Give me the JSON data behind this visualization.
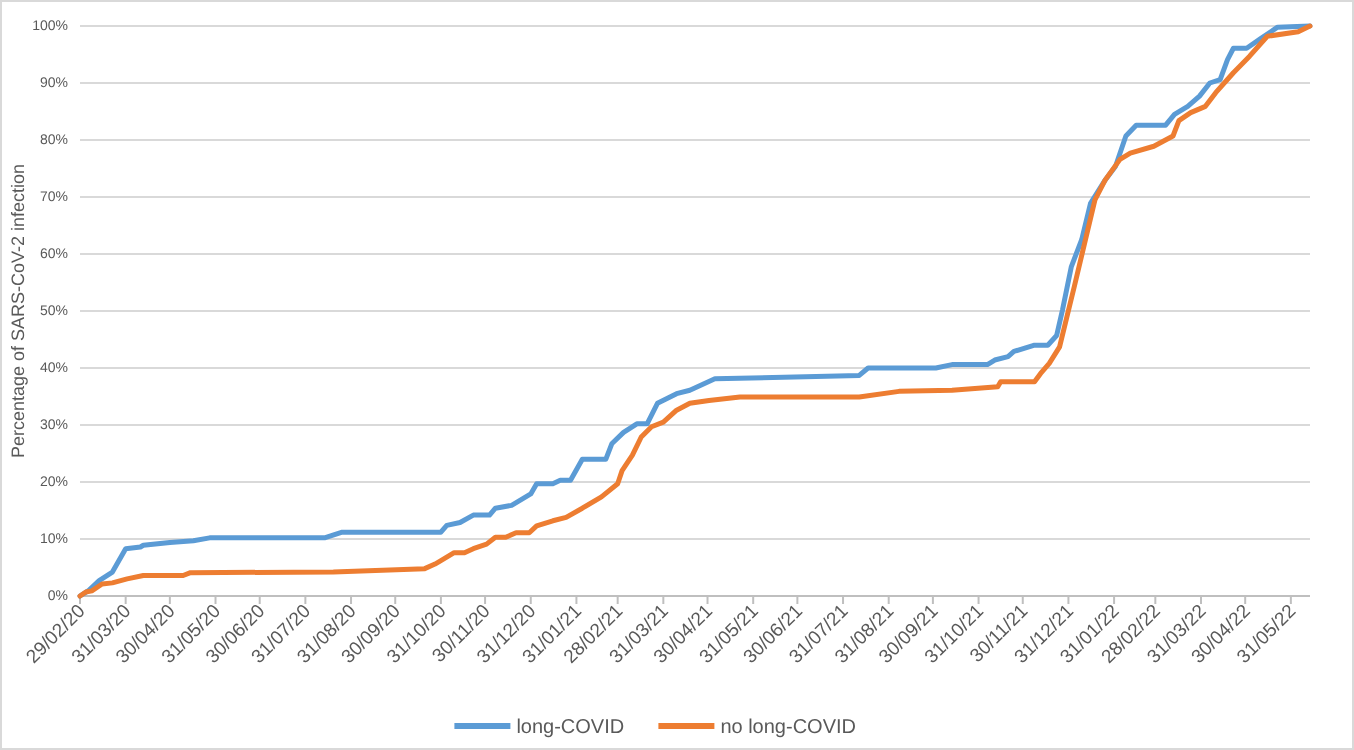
{
  "chart_data": {
    "type": "line",
    "ylabel": "Percentage of SARS-CoV-2 infection",
    "xlim": [
      "2020-02-29",
      "2022-06-13"
    ],
    "ylim": [
      0,
      100
    ],
    "xticks": [
      {
        "value": "2020-02-29",
        "label": "29/02/20"
      },
      {
        "value": "2020-03-31",
        "label": "31/03/20"
      },
      {
        "value": "2020-04-30",
        "label": "30/04/20"
      },
      {
        "value": "2020-05-31",
        "label": "31/05/20"
      },
      {
        "value": "2020-06-30",
        "label": "30/06/20"
      },
      {
        "value": "2020-07-31",
        "label": "31/07/20"
      },
      {
        "value": "2020-08-31",
        "label": "31/08/20"
      },
      {
        "value": "2020-09-30",
        "label": "30/09/20"
      },
      {
        "value": "2020-10-31",
        "label": "31/10/20"
      },
      {
        "value": "2020-11-30",
        "label": "30/11/20"
      },
      {
        "value": "2020-12-31",
        "label": "31/12/20"
      },
      {
        "value": "2021-01-31",
        "label": "31/01/21"
      },
      {
        "value": "2021-02-28",
        "label": "28/02/21"
      },
      {
        "value": "2021-03-31",
        "label": "31/03/21"
      },
      {
        "value": "2021-04-30",
        "label": "30/04/21"
      },
      {
        "value": "2021-05-31",
        "label": "31/05/21"
      },
      {
        "value": "2021-06-30",
        "label": "30/06/21"
      },
      {
        "value": "2021-07-31",
        "label": "31/07/21"
      },
      {
        "value": "2021-08-31",
        "label": "31/08/21"
      },
      {
        "value": "2021-09-30",
        "label": "30/09/21"
      },
      {
        "value": "2021-10-31",
        "label": "31/10/21"
      },
      {
        "value": "2021-11-30",
        "label": "30/11/21"
      },
      {
        "value": "2021-12-31",
        "label": "31/12/21"
      },
      {
        "value": "2022-01-31",
        "label": "31/01/22"
      },
      {
        "value": "2022-02-28",
        "label": "28/02/22"
      },
      {
        "value": "2022-03-31",
        "label": "31/03/22"
      },
      {
        "value": "2022-04-30",
        "label": "30/04/22"
      },
      {
        "value": "2022-05-31",
        "label": "31/05/22"
      }
    ],
    "yticks": [
      {
        "value": 0,
        "label": "0%"
      },
      {
        "value": 10,
        "label": "10%"
      },
      {
        "value": 20,
        "label": "20%"
      },
      {
        "value": 30,
        "label": "30%"
      },
      {
        "value": 40,
        "label": "40%"
      },
      {
        "value": 50,
        "label": "50%"
      },
      {
        "value": 60,
        "label": "60%"
      },
      {
        "value": 70,
        "label": "70%"
      },
      {
        "value": 80,
        "label": "80%"
      },
      {
        "value": 90,
        "label": "90%"
      },
      {
        "value": 100,
        "label": "100%"
      }
    ],
    "grid": "y",
    "legend": "bottom",
    "marker": "none",
    "line_style": "solid",
    "series": [
      {
        "name": "long-COVID",
        "color": "#5b9bd5",
        "x": [
          "2020-02-29",
          "2020-03-06",
          "2020-03-13",
          "2020-03-22",
          "2020-03-31",
          "2020-04-10",
          "2020-04-12",
          "2020-04-30",
          "2020-05-16",
          "2020-05-27",
          "2020-08-13",
          "2020-08-25",
          "2020-10-31",
          "2020-11-04",
          "2020-11-13",
          "2020-11-22",
          "2020-12-03",
          "2020-12-07",
          "2020-12-18",
          "2020-12-31",
          "2021-01-04",
          "2021-01-15",
          "2021-01-20",
          "2021-01-27",
          "2021-02-04",
          "2021-02-20",
          "2021-02-24",
          "2021-03-04",
          "2021-03-13",
          "2021-03-20",
          "2021-03-27",
          "2021-04-09",
          "2021-04-18",
          "2021-05-05",
          "2021-08-11",
          "2021-08-17",
          "2021-10-02",
          "2021-10-13",
          "2021-11-06",
          "2021-11-11",
          "2021-11-20",
          "2021-11-24",
          "2021-12-08",
          "2021-12-17",
          "2021-12-23",
          "2021-12-27",
          "2022-01-02",
          "2022-01-09",
          "2022-01-15",
          "2022-01-25",
          "2022-02-01",
          "2022-02-08",
          "2022-02-15",
          "2022-03-07",
          "2022-03-13",
          "2022-03-22",
          "2022-03-30",
          "2022-04-06",
          "2022-04-13",
          "2022-04-18",
          "2022-04-22",
          "2022-05-01",
          "2022-05-10",
          "2022-05-22",
          "2022-06-13"
        ],
        "values": [
          0,
          1,
          2.7,
          4.2,
          8.3,
          8.6,
          8.9,
          9.4,
          9.7,
          10.2,
          10.2,
          11.2,
          11.2,
          12.4,
          12.9,
          14.2,
          14.2,
          15.4,
          15.9,
          17.9,
          19.7,
          19.7,
          20.3,
          20.3,
          24,
          24,
          26.7,
          28.7,
          30.2,
          30.2,
          33.8,
          35.5,
          36.1,
          38.1,
          38.7,
          40,
          40,
          40.6,
          40.6,
          41.4,
          42,
          42.9,
          44,
          44,
          45.7,
          50.2,
          57.8,
          62.5,
          68.9,
          73,
          75.4,
          80.7,
          82.6,
          82.6,
          84.5,
          85.9,
          87.7,
          90,
          90.6,
          94.1,
          96.1,
          96.1,
          97.7,
          99.8,
          100
        ]
      },
      {
        "name": "no long-COVID",
        "color": "#ed7d31",
        "x": [
          "2020-02-29",
          "2020-03-04",
          "2020-03-08",
          "2020-03-15",
          "2020-03-22",
          "2020-04-01",
          "2020-04-12",
          "2020-05-09",
          "2020-05-14",
          "2020-08-19",
          "2020-10-20",
          "2020-10-27",
          "2020-10-31",
          "2020-11-09",
          "2020-11-16",
          "2020-11-22",
          "2020-12-01",
          "2020-12-07",
          "2020-12-14",
          "2020-12-21",
          "2020-12-30",
          "2021-01-04",
          "2021-01-15",
          "2021-01-24",
          "2021-02-04",
          "2021-02-17",
          "2021-02-28",
          "2021-03-03",
          "2021-03-10",
          "2021-03-16",
          "2021-03-23",
          "2021-03-31",
          "2021-04-09",
          "2021-04-18",
          "2021-05-01",
          "2021-05-22",
          "2021-08-11",
          "2021-09-07",
          "2021-10-13",
          "2021-11-13",
          "2021-11-15",
          "2021-12-08",
          "2021-12-12",
          "2021-12-18",
          "2021-12-25",
          "2021-12-30",
          "2022-01-04",
          "2022-01-11",
          "2022-01-18",
          "2022-01-25",
          "2022-02-04",
          "2022-02-11",
          "2022-02-27",
          "2022-03-12",
          "2022-03-16",
          "2022-03-24",
          "2022-04-03",
          "2022-04-10",
          "2022-04-22",
          "2022-05-03",
          "2022-05-15",
          "2022-06-05",
          "2022-06-13"
        ],
        "values": [
          0,
          0.7,
          0.9,
          2.1,
          2.3,
          3,
          3.6,
          3.6,
          4.1,
          4.2,
          4.8,
          5.6,
          6.2,
          7.6,
          7.6,
          8.3,
          9.1,
          10.3,
          10.3,
          11.1,
          11.1,
          12.3,
          13.2,
          13.8,
          15.4,
          17.4,
          19.7,
          22,
          24.7,
          27.9,
          29.7,
          30.5,
          32.6,
          33.8,
          34.3,
          34.9,
          34.9,
          35.9,
          36.1,
          36.7,
          37.6,
          37.6,
          39,
          40.8,
          43.7,
          49,
          54.3,
          61.9,
          69.5,
          73,
          76.6,
          77.7,
          78.9,
          80.7,
          83.4,
          84.8,
          85.9,
          88.3,
          91.8,
          94.7,
          98.2,
          99,
          100
        ]
      }
    ]
  }
}
